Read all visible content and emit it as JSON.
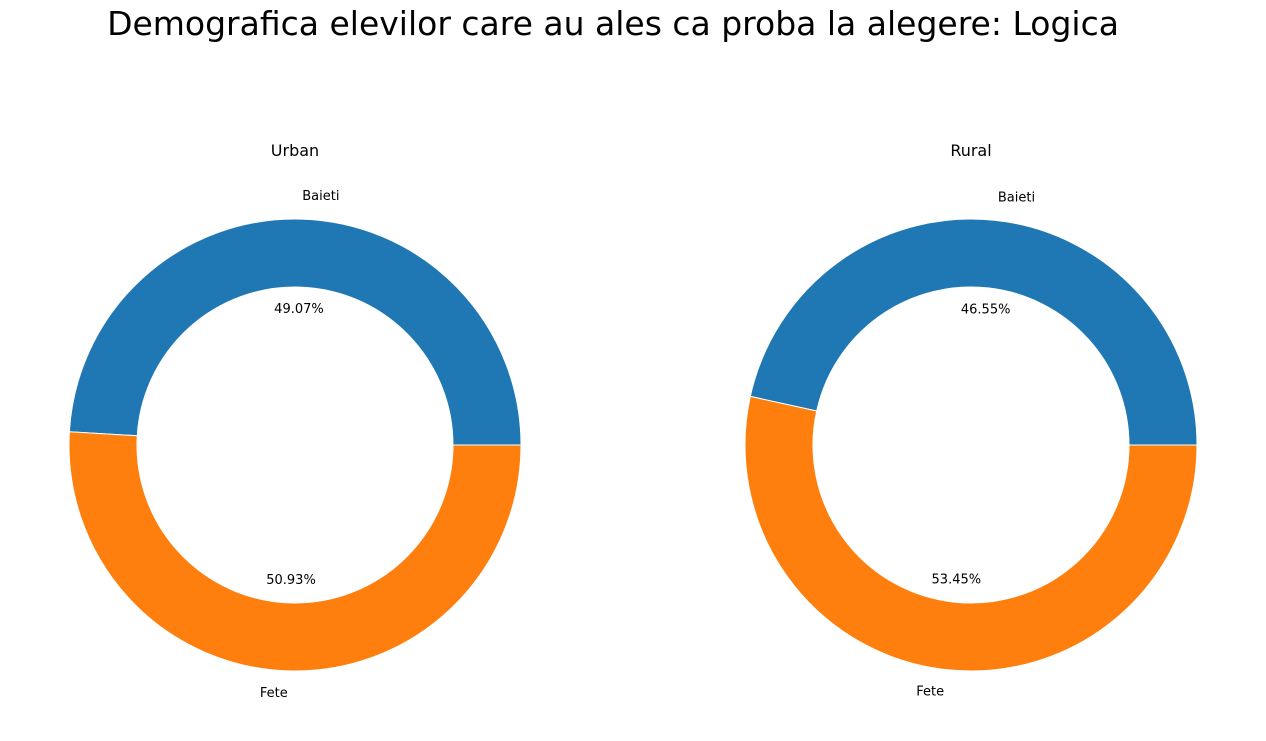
{
  "title": "Demografica elevilor care au ales ca proba la alegere: Logica",
  "colors": {
    "Baieti": "#1f77b4",
    "Fete": "#ff7f0e"
  },
  "chart_data": [
    {
      "type": "pie",
      "title": "Urban",
      "donut": true,
      "labels": [
        "Baieti",
        "Fete"
      ],
      "values": [
        49.07,
        50.93
      ],
      "value_labels": [
        "49.07%",
        "50.93%"
      ]
    },
    {
      "type": "pie",
      "title": "Rural",
      "donut": true,
      "labels": [
        "Baieti",
        "Fete"
      ],
      "values": [
        46.55,
        53.45
      ],
      "value_labels": [
        "46.55%",
        "53.45%"
      ]
    }
  ]
}
